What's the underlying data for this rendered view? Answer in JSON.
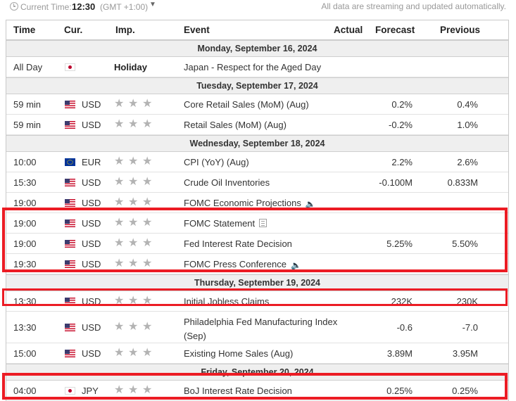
{
  "topbar": {
    "current_time_label": "Current Time:",
    "current_time": "12:30",
    "gmt": "(GMT +1:00)",
    "status": "All data are streaming and updated automatically."
  },
  "headers": {
    "time": "Time",
    "cur": "Cur.",
    "imp": "Imp.",
    "event": "Event",
    "actual": "Actual",
    "forecast": "Forecast",
    "previous": "Previous"
  },
  "days": [
    {
      "date": "Monday, September 16, 2024",
      "rows": [
        {
          "time": "All Day",
          "flag": "jp",
          "cur": "",
          "imp": "Holiday",
          "event": "Japan - Respect for the Aged Day",
          "forecast": "",
          "previous": ""
        }
      ]
    },
    {
      "date": "Tuesday, September 17, 2024",
      "rows": [
        {
          "time": "59 min",
          "flag": "us",
          "cur": "USD",
          "event": "Core Retail Sales (MoM) (Aug)",
          "forecast": "0.2%",
          "previous": "0.4%"
        },
        {
          "time": "59 min",
          "flag": "us",
          "cur": "USD",
          "event": "Retail Sales (MoM) (Aug)",
          "forecast": "-0.2%",
          "previous": "1.0%"
        }
      ]
    },
    {
      "date": "Wednesday, September 18, 2024",
      "rows": [
        {
          "time": "10:00",
          "flag": "eu",
          "cur": "EUR",
          "event": "CPI (YoY) (Aug)",
          "forecast": "2.2%",
          "previous": "2.6%"
        },
        {
          "time": "15:30",
          "flag": "us",
          "cur": "USD",
          "event": "Crude Oil Inventories",
          "forecast": "-0.100M",
          "previous": "0.833M"
        },
        {
          "time": "19:00",
          "flag": "us",
          "cur": "USD",
          "event": "FOMC Economic Projections",
          "forecast": "",
          "previous": ""
        },
        {
          "time": "19:00",
          "flag": "us",
          "cur": "USD",
          "event": "FOMC Statement",
          "forecast": "",
          "previous": ""
        },
        {
          "time": "19:00",
          "flag": "us",
          "cur": "USD",
          "event": "Fed Interest Rate Decision",
          "forecast": "5.25%",
          "previous": "5.50%"
        },
        {
          "time": "19:30",
          "flag": "us",
          "cur": "USD",
          "event": "FOMC Press Conference",
          "forecast": "",
          "previous": ""
        }
      ]
    },
    {
      "date": "Thursday, September 19, 2024",
      "rows": [
        {
          "time": "13:30",
          "flag": "us",
          "cur": "USD",
          "event": "Initial Jobless Claims",
          "forecast": "232K",
          "previous": "230K"
        },
        {
          "time": "13:30",
          "flag": "us",
          "cur": "USD",
          "event": "Philadelphia Fed Manufacturing Index (Sep)",
          "forecast": "-0.6",
          "previous": "-7.0"
        },
        {
          "time": "15:00",
          "flag": "us",
          "cur": "USD",
          "event": "Existing Home Sales (Aug)",
          "forecast": "3.89M",
          "previous": "3.95M"
        }
      ]
    },
    {
      "date": "Friday, September 20, 2024",
      "rows": [
        {
          "time": "04:00",
          "flag": "jp",
          "cur": "JPY",
          "event": "BoJ Interest Rate Decision",
          "forecast": "0.25%",
          "previous": "0.25%"
        }
      ]
    }
  ],
  "colors": {
    "highlight": "#ec1c24",
    "star": "#b3b3b3",
    "date_row_bg": "#efefef"
  }
}
